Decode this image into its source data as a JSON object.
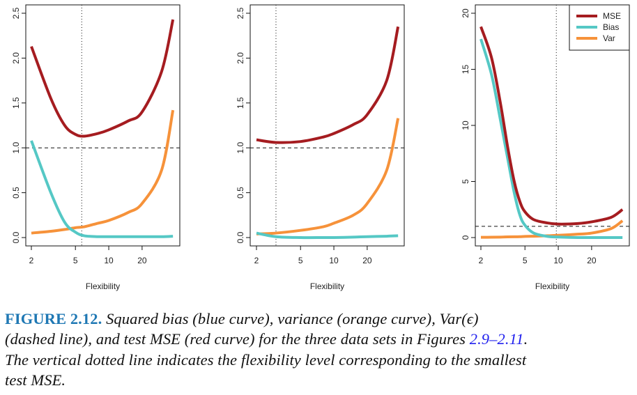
{
  "colors": {
    "mse": "#a51c20",
    "bias": "#55c8c5",
    "var": "#f6923a"
  },
  "chart_data": [
    {
      "type": "line",
      "xlabel": "Flexibility",
      "ylabel": "",
      "xscale": "log",
      "xlim": [
        2,
        38
      ],
      "ylim": [
        0,
        2.5
      ],
      "xticks": [
        2,
        5,
        10,
        20
      ],
      "yticks": [
        "0.0",
        "0.5",
        "1.0",
        "1.5",
        "2.0",
        "2.5"
      ],
      "hline": 1.0,
      "vline": 5.7,
      "x": [
        2,
        3,
        4,
        5,
        6,
        8,
        10,
        15,
        20,
        30,
        38
      ],
      "series": [
        {
          "name": "MSE",
          "values": [
            2.13,
            1.55,
            1.25,
            1.15,
            1.13,
            1.16,
            1.2,
            1.3,
            1.4,
            1.85,
            2.43
          ]
        },
        {
          "name": "Bias",
          "values": [
            1.08,
            0.5,
            0.17,
            0.06,
            0.02,
            0.01,
            0.01,
            0.01,
            0.01,
            0.01,
            0.015
          ]
        },
        {
          "name": "Var",
          "values": [
            0.05,
            0.07,
            0.09,
            0.11,
            0.12,
            0.16,
            0.19,
            0.28,
            0.38,
            0.75,
            1.42
          ]
        }
      ]
    },
    {
      "type": "line",
      "xlabel": "Flexibility",
      "ylabel": "",
      "xscale": "log",
      "xlim": [
        2,
        38
      ],
      "ylim": [
        0,
        2.5
      ],
      "xticks": [
        2,
        5,
        10,
        20
      ],
      "yticks": [
        "0.0",
        "0.5",
        "1.0",
        "1.5",
        "2.0",
        "2.5"
      ],
      "hline": 1.0,
      "vline": 3.0,
      "x": [
        2,
        3,
        5,
        8,
        10,
        15,
        20,
        30,
        38
      ],
      "series": [
        {
          "name": "MSE",
          "values": [
            1.09,
            1.06,
            1.07,
            1.12,
            1.16,
            1.26,
            1.37,
            1.75,
            2.35
          ]
        },
        {
          "name": "Bias",
          "values": [
            0.05,
            0.01,
            0.0,
            0.0,
            0.0,
            0.005,
            0.01,
            0.015,
            0.02
          ]
        },
        {
          "name": "Var",
          "values": [
            0.04,
            0.05,
            0.08,
            0.12,
            0.16,
            0.25,
            0.38,
            0.75,
            1.33
          ]
        }
      ]
    },
    {
      "type": "line",
      "xlabel": "Flexibility",
      "ylabel": "",
      "xscale": "log",
      "xlim": [
        2,
        38
      ],
      "ylim": [
        0,
        20
      ],
      "xticks": [
        2,
        5,
        10,
        20
      ],
      "yticks": [
        "0",
        "5",
        "10",
        "15",
        "20"
      ],
      "hline": 1.0,
      "vline": 9.6,
      "legend": {
        "position": "top-right",
        "entries": [
          "MSE",
          "Bias",
          "Var"
        ]
      },
      "x": [
        2,
        2.5,
        3,
        3.5,
        4,
        4.5,
        5,
        6,
        8,
        10,
        15,
        20,
        30,
        38
      ],
      "series": [
        {
          "name": "MSE",
          "values": [
            18.8,
            16,
            12,
            8,
            5,
            3.2,
            2.3,
            1.6,
            1.3,
            1.2,
            1.25,
            1.4,
            1.8,
            2.5
          ]
        },
        {
          "name": "Bias",
          "values": [
            17.7,
            14.5,
            10.5,
            7,
            4,
            2,
            1.1,
            0.4,
            0.1,
            0.05,
            0.0,
            0.0,
            0.0,
            0.0
          ]
        },
        {
          "name": "Var",
          "values": [
            0.02,
            0.03,
            0.04,
            0.06,
            0.07,
            0.08,
            0.1,
            0.12,
            0.16,
            0.2,
            0.3,
            0.4,
            0.8,
            1.5
          ]
        }
      ]
    }
  ],
  "caption": {
    "figure_label": "FIGURE 2.12.",
    "line1": "Squared bias (blue curve), variance (orange curve), Var(ϵ)",
    "line2a": "(dashed line), and test MSE (red curve) for the three data sets in Figures ",
    "line2_ref": "2.9–2.11",
    "line2b": ".",
    "line3": "The vertical dotted line indicates the flexibility level corresponding to the smallest",
    "line4": "test MSE."
  }
}
